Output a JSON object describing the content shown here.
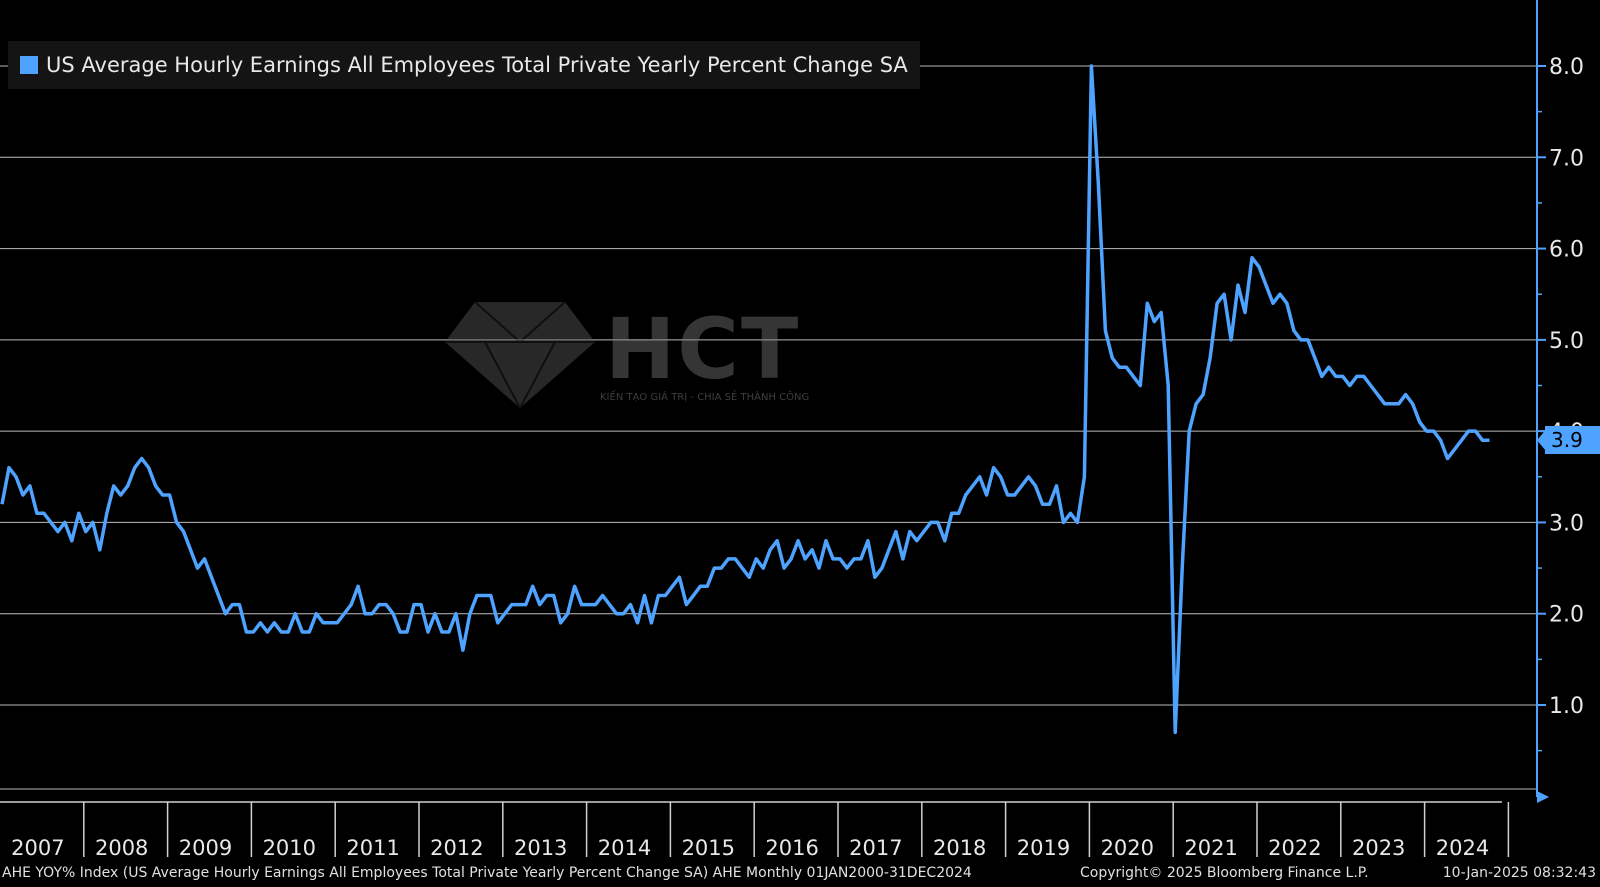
{
  "legend": {
    "label": "US Average Hourly Earnings All Employees Total Private Yearly Percent Change SA",
    "color": "#4da3ff"
  },
  "footer": {
    "left": "AHE YOY% Index (US Average Hourly Earnings All Employees Total Private Yearly Percent Change SA) AHE  Monthly 01JAN2000-31DEC2024",
    "mid": "Copyright© 2025 Bloomberg Finance L.P.",
    "right": "10-Jan-2025 08:32:43"
  },
  "watermark": {
    "logo_text": "HCT",
    "tagline": "KIẾN TẠO GIÁ TRỊ - CHIA SẺ THÀNH CÔNG"
  },
  "last_value_label": "3.9",
  "chart_data": {
    "type": "line",
    "title": "",
    "xlabel": "",
    "ylabel": "",
    "ylim": [
      0,
      8.5
    ],
    "y_ticks": [
      1.0,
      2.0,
      3.0,
      4.0,
      5.0,
      6.0,
      7.0,
      8.0
    ],
    "y_tick_labels": [
      "1.0",
      "2.0",
      "3.0",
      "4.0",
      "5.0",
      "6.0",
      "7.0",
      "8.0"
    ],
    "x_tick_labels": [
      "2007",
      "2008",
      "2009",
      "2010",
      "2011",
      "2012",
      "2013",
      "2014",
      "2015",
      "2016",
      "2017",
      "2018",
      "2019",
      "2020",
      "2021",
      "2022",
      "2023",
      "2024"
    ],
    "grid": true,
    "legend_position": "top-left",
    "series": [
      {
        "name": "US Average Hourly Earnings All Employees Total Private Yearly Percent Change SA",
        "color": "#4da3ff",
        "start": "2007-01",
        "values": [
          3.2,
          3.6,
          3.5,
          3.3,
          3.4,
          3.1,
          3.1,
          3.0,
          2.9,
          3.0,
          2.8,
          3.1,
          2.9,
          3.0,
          2.7,
          3.1,
          3.4,
          3.3,
          3.4,
          3.6,
          3.7,
          3.6,
          3.4,
          3.3,
          3.3,
          3.0,
          2.9,
          2.7,
          2.5,
          2.6,
          2.4,
          2.2,
          2.0,
          2.1,
          2.1,
          1.8,
          1.8,
          1.9,
          1.8,
          1.9,
          1.8,
          1.8,
          2.0,
          1.8,
          1.8,
          2.0,
          1.9,
          1.9,
          1.9,
          2.0,
          2.1,
          2.3,
          2.0,
          2.0,
          2.1,
          2.1,
          2.0,
          1.8,
          1.8,
          2.1,
          2.1,
          1.8,
          2.0,
          1.8,
          1.8,
          2.0,
          1.6,
          2.0,
          2.2,
          2.2,
          2.2,
          1.9,
          2.0,
          2.1,
          2.1,
          2.1,
          2.3,
          2.1,
          2.2,
          2.2,
          1.9,
          2.0,
          2.3,
          2.1,
          2.1,
          2.1,
          2.2,
          2.1,
          2.0,
          2.0,
          2.1,
          1.9,
          2.2,
          1.9,
          2.2,
          2.2,
          2.3,
          2.4,
          2.1,
          2.2,
          2.3,
          2.3,
          2.5,
          2.5,
          2.6,
          2.6,
          2.5,
          2.4,
          2.6,
          2.5,
          2.7,
          2.8,
          2.5,
          2.6,
          2.8,
          2.6,
          2.7,
          2.5,
          2.8,
          2.6,
          2.6,
          2.5,
          2.6,
          2.6,
          2.8,
          2.4,
          2.5,
          2.7,
          2.9,
          2.6,
          2.9,
          2.8,
          2.9,
          3.0,
          3.0,
          2.8,
          3.1,
          3.1,
          3.3,
          3.4,
          3.5,
          3.3,
          3.6,
          3.5,
          3.3,
          3.3,
          3.4,
          3.5,
          3.4,
          3.2,
          3.2,
          3.4,
          3.0,
          3.1,
          3.0,
          3.5,
          8.0,
          6.7,
          5.1,
          4.8,
          4.7,
          4.7,
          4.6,
          4.5,
          5.4,
          5.2,
          5.3,
          4.5,
          0.7,
          2.5,
          4.0,
          4.3,
          4.4,
          4.8,
          5.4,
          5.5,
          5.0,
          5.6,
          5.3,
          5.9,
          5.8,
          5.6,
          5.4,
          5.5,
          5.4,
          5.1,
          5.0,
          5.0,
          4.8,
          4.6,
          4.7,
          4.6,
          4.6,
          4.5,
          4.6,
          4.6,
          4.5,
          4.4,
          4.3,
          4.3,
          4.3,
          4.4,
          4.3,
          4.1,
          4.0,
          4.0,
          3.9,
          3.7,
          3.8,
          3.9,
          4.0,
          4.0,
          3.9,
          3.9
        ]
      }
    ]
  }
}
